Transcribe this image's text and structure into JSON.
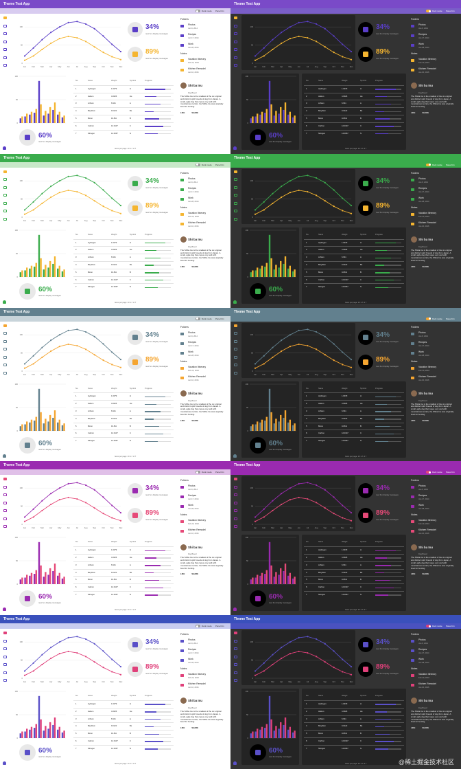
{
  "app_title": "Theme Test App",
  "toggles": {
    "dark_mode": "Dark mode",
    "panel": "Panel btn"
  },
  "stats": [
    {
      "value": "34%",
      "caption": "new fun display messages"
    },
    {
      "value": "89%",
      "caption": "new fun display messages"
    },
    {
      "value": "60%",
      "caption": "new fun display messages"
    }
  ],
  "folders": {
    "heading": "Folders",
    "items": [
      {
        "name": "Photos",
        "date": "Jan 9, 2014"
      },
      {
        "name": "Recipes",
        "date": "Jan 17, 2014"
      },
      {
        "name": "Work",
        "date": "Jan 28, 2014"
      }
    ]
  },
  "notes": {
    "heading": "Notes",
    "items": [
      {
        "name": "Vacation Itinerary",
        "date": "Feb 20, 2016"
      },
      {
        "name": "Kitchen Remodel",
        "date": "Jan 10, 2016"
      }
    ]
  },
  "post": {
    "name": "Shi ba Inu",
    "breed": "Dog Breed",
    "text": "The Shiba Inu is the smallest of the six original and distinct spitz breeds of dog from Japan. A small, agile dog that copes very well with mountainous terrain, the Shiba Inu was originally bred for hunting.",
    "like": "LIKE",
    "share": "SHARE"
  },
  "table": {
    "columns": [
      "No.",
      "Name",
      "Weight",
      "Symbol",
      "Progress"
    ],
    "rows": [
      {
        "no": "1",
        "name": "Hydrogen",
        "weight": "1.0079",
        "symbol": "H",
        "progress": 0.8
      },
      {
        "no": "2",
        "name": "Helium",
        "weight": "4.0026",
        "symbol": "He",
        "progress": 0.45
      },
      {
        "no": "3",
        "name": "Lithium",
        "weight": "6.941",
        "symbol": "Li",
        "progress": 0.6
      },
      {
        "no": "4",
        "name": "Beryllium",
        "weight": "9.0122",
        "symbol": "Be",
        "progress": 0.35
      },
      {
        "no": "5",
        "name": "Boron",
        "weight": "10.811",
        "symbol": "B",
        "progress": 0.55
      },
      {
        "no": "6",
        "name": "Carbon",
        "weight": "12.0107",
        "symbol": "C",
        "progress": 0.7
      },
      {
        "no": "7",
        "name": "Nitrogen",
        "weight": "14.0067",
        "symbol": "N",
        "progress": 0.5
      }
    ],
    "footer": "Items per page: 10   1-7 of 7"
  },
  "chart_data": [
    {
      "type": "line",
      "title": "",
      "categories": [
        "Jan",
        "Feb",
        "Mar",
        "Apr",
        "May",
        "Jun",
        "Jul",
        "Aug",
        "Sep",
        "Oct",
        "Nov",
        "Dec"
      ],
      "series": [
        {
          "name": "Series A",
          "values": [
            20,
            42,
            65,
            85,
            100,
            112,
            115,
            108,
            95,
            75,
            52,
            32
          ]
        },
        {
          "name": "Series B",
          "values": [
            8,
            20,
            38,
            55,
            68,
            74,
            70,
            60,
            45,
            30,
            18,
            10
          ]
        }
      ],
      "ylim": [
        0,
        125
      ],
      "yticks": [
        "0",
        "50",
        "100"
      ]
    },
    {
      "type": "bar",
      "title": "",
      "categories": [
        "1",
        "2",
        "3",
        "4",
        "5",
        "6",
        "7",
        "8",
        "9",
        "10"
      ],
      "series": [
        {
          "name": "A",
          "values": [
            10,
            14,
            18,
            22,
            90,
            16,
            20,
            28,
            18,
            12
          ]
        },
        {
          "name": "B",
          "values": [
            14,
            20,
            24,
            30,
            40,
            26,
            34,
            44,
            24,
            16
          ]
        }
      ],
      "ylim": [
        0,
        100
      ],
      "yticks": [
        "0",
        "50",
        "100"
      ]
    }
  ],
  "themes": [
    {
      "bar": "#7a4ac8",
      "primary": "#5a3ec8",
      "accent": "#f5b530",
      "sub_light": "#d8ccf0",
      "sub_dark": "#7a5ec8"
    },
    {
      "bar": "#3aac4c",
      "primary": "#3aac4c",
      "accent": "#f5b530",
      "sub_light": "#c8e8c8",
      "sub_dark": "#3aac4c"
    },
    {
      "bar": "#62808e",
      "primary": "#62808e",
      "accent": "#f5a530",
      "sub_light": "#c8d4da",
      "sub_dark": "#62808e"
    },
    {
      "bar": "#9a2ab0",
      "primary": "#9a2ab0",
      "accent": "#e64a78",
      "sub_light": "#e0c0e8",
      "sub_dark": "#9a2ab0"
    },
    {
      "bar": "#3a50bc",
      "primary": "#5a50c8",
      "accent": "#e0407a",
      "sub_light": "#c8ccf0",
      "sub_dark": "#4a52c0"
    }
  ],
  "watermark": "@稀土掘金技术社区"
}
